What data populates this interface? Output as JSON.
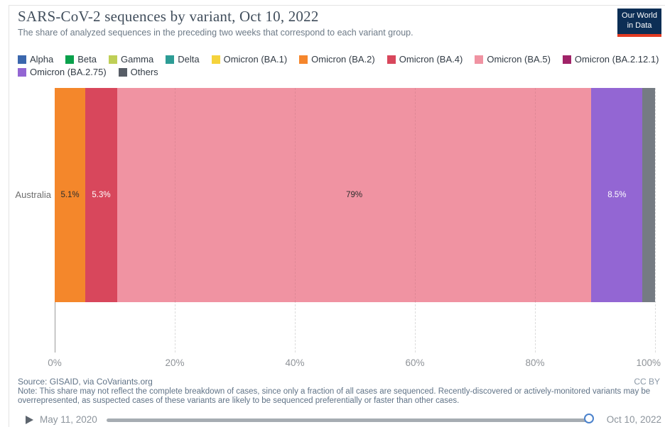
{
  "header": {
    "title": "SARS-CoV-2 sequences by variant, Oct 10, 2022",
    "subtitle": "The share of analyzed sequences in the preceding two weeks that correspond to each variant group.",
    "logo": {
      "line1": "Our World",
      "line2": "in Data",
      "bg_color": "#0c2e55",
      "accent_color": "#e23a22"
    }
  },
  "legend": {
    "row1": [
      {
        "label": "Alpha",
        "color": "#3b67ad"
      },
      {
        "label": "Beta",
        "color": "#0aa14c"
      },
      {
        "label": "Gamma",
        "color": "#bfcf56"
      },
      {
        "label": "Delta",
        "color": "#2d9c95"
      },
      {
        "label": "Omicron (BA.1)",
        "color": "#f5d33c"
      },
      {
        "label": "Omicron (BA.2)",
        "color": "#f5862c"
      },
      {
        "label": "Omicron (BA.4)",
        "color": "#d8475c"
      },
      {
        "label": "Omicron (BA.5)",
        "color": "#f093a2"
      },
      {
        "label": "Omicron (BA.2.12.1)",
        "color": "#a02368"
      }
    ],
    "row2": [
      {
        "label": "Omicron (BA.2.75)",
        "color": "#9366d3"
      },
      {
        "label": "Others",
        "color": "#575d66"
      }
    ]
  },
  "chart_data": {
    "type": "bar",
    "orientation": "horizontal-stacked",
    "title": "SARS-CoV-2 sequences by variant, Oct 10, 2022",
    "entity": "Australia",
    "series": [
      {
        "name": "Omicron (BA.2)",
        "value": 5.1,
        "label": "5.1%",
        "color": "#f4872b",
        "label_color": "#2d2d2d"
      },
      {
        "name": "Omicron (BA.4)",
        "value": 5.3,
        "label": "5.3%",
        "color": "#d8475c",
        "label_color": "#ffffff"
      },
      {
        "name": "Omicron (BA.5)",
        "value": 79,
        "label": "79%",
        "color": "#f093a2",
        "label_color": "#2d2d2d"
      },
      {
        "name": "Omicron (BA.2.75)",
        "value": 8.5,
        "label": "8.5%",
        "color": "#9366d3",
        "label_color": "#ffffff"
      },
      {
        "name": "Others",
        "value": 2.1,
        "label": "",
        "color": "#757b83",
        "label_color": "#ffffff"
      }
    ],
    "xticks": [
      {
        "value": 0,
        "label": "0%"
      },
      {
        "value": 20,
        "label": "20%"
      },
      {
        "value": 40,
        "label": "40%"
      },
      {
        "value": 60,
        "label": "60%"
      },
      {
        "value": 80,
        "label": "80%"
      },
      {
        "value": 100,
        "label": "100%"
      }
    ],
    "xlim": [
      0,
      100
    ],
    "grid": "dashed-vertical"
  },
  "footer": {
    "source": "Source: GISAID, via CoVariants.org",
    "license": "CC BY",
    "note_line1": "Note: This share may not reflect the complete breakdown of cases, since only a fraction of all cases are sequenced. Recently-discovered or actively-monitored variants may be",
    "note_line2": "overrepresented, as suspected cases of these variants are likely to be sequenced preferentially or faster than other cases."
  },
  "timeline": {
    "start_date": "May 11, 2020",
    "end_date": "Oct 10, 2022",
    "handle_color": "#4b82cc"
  }
}
